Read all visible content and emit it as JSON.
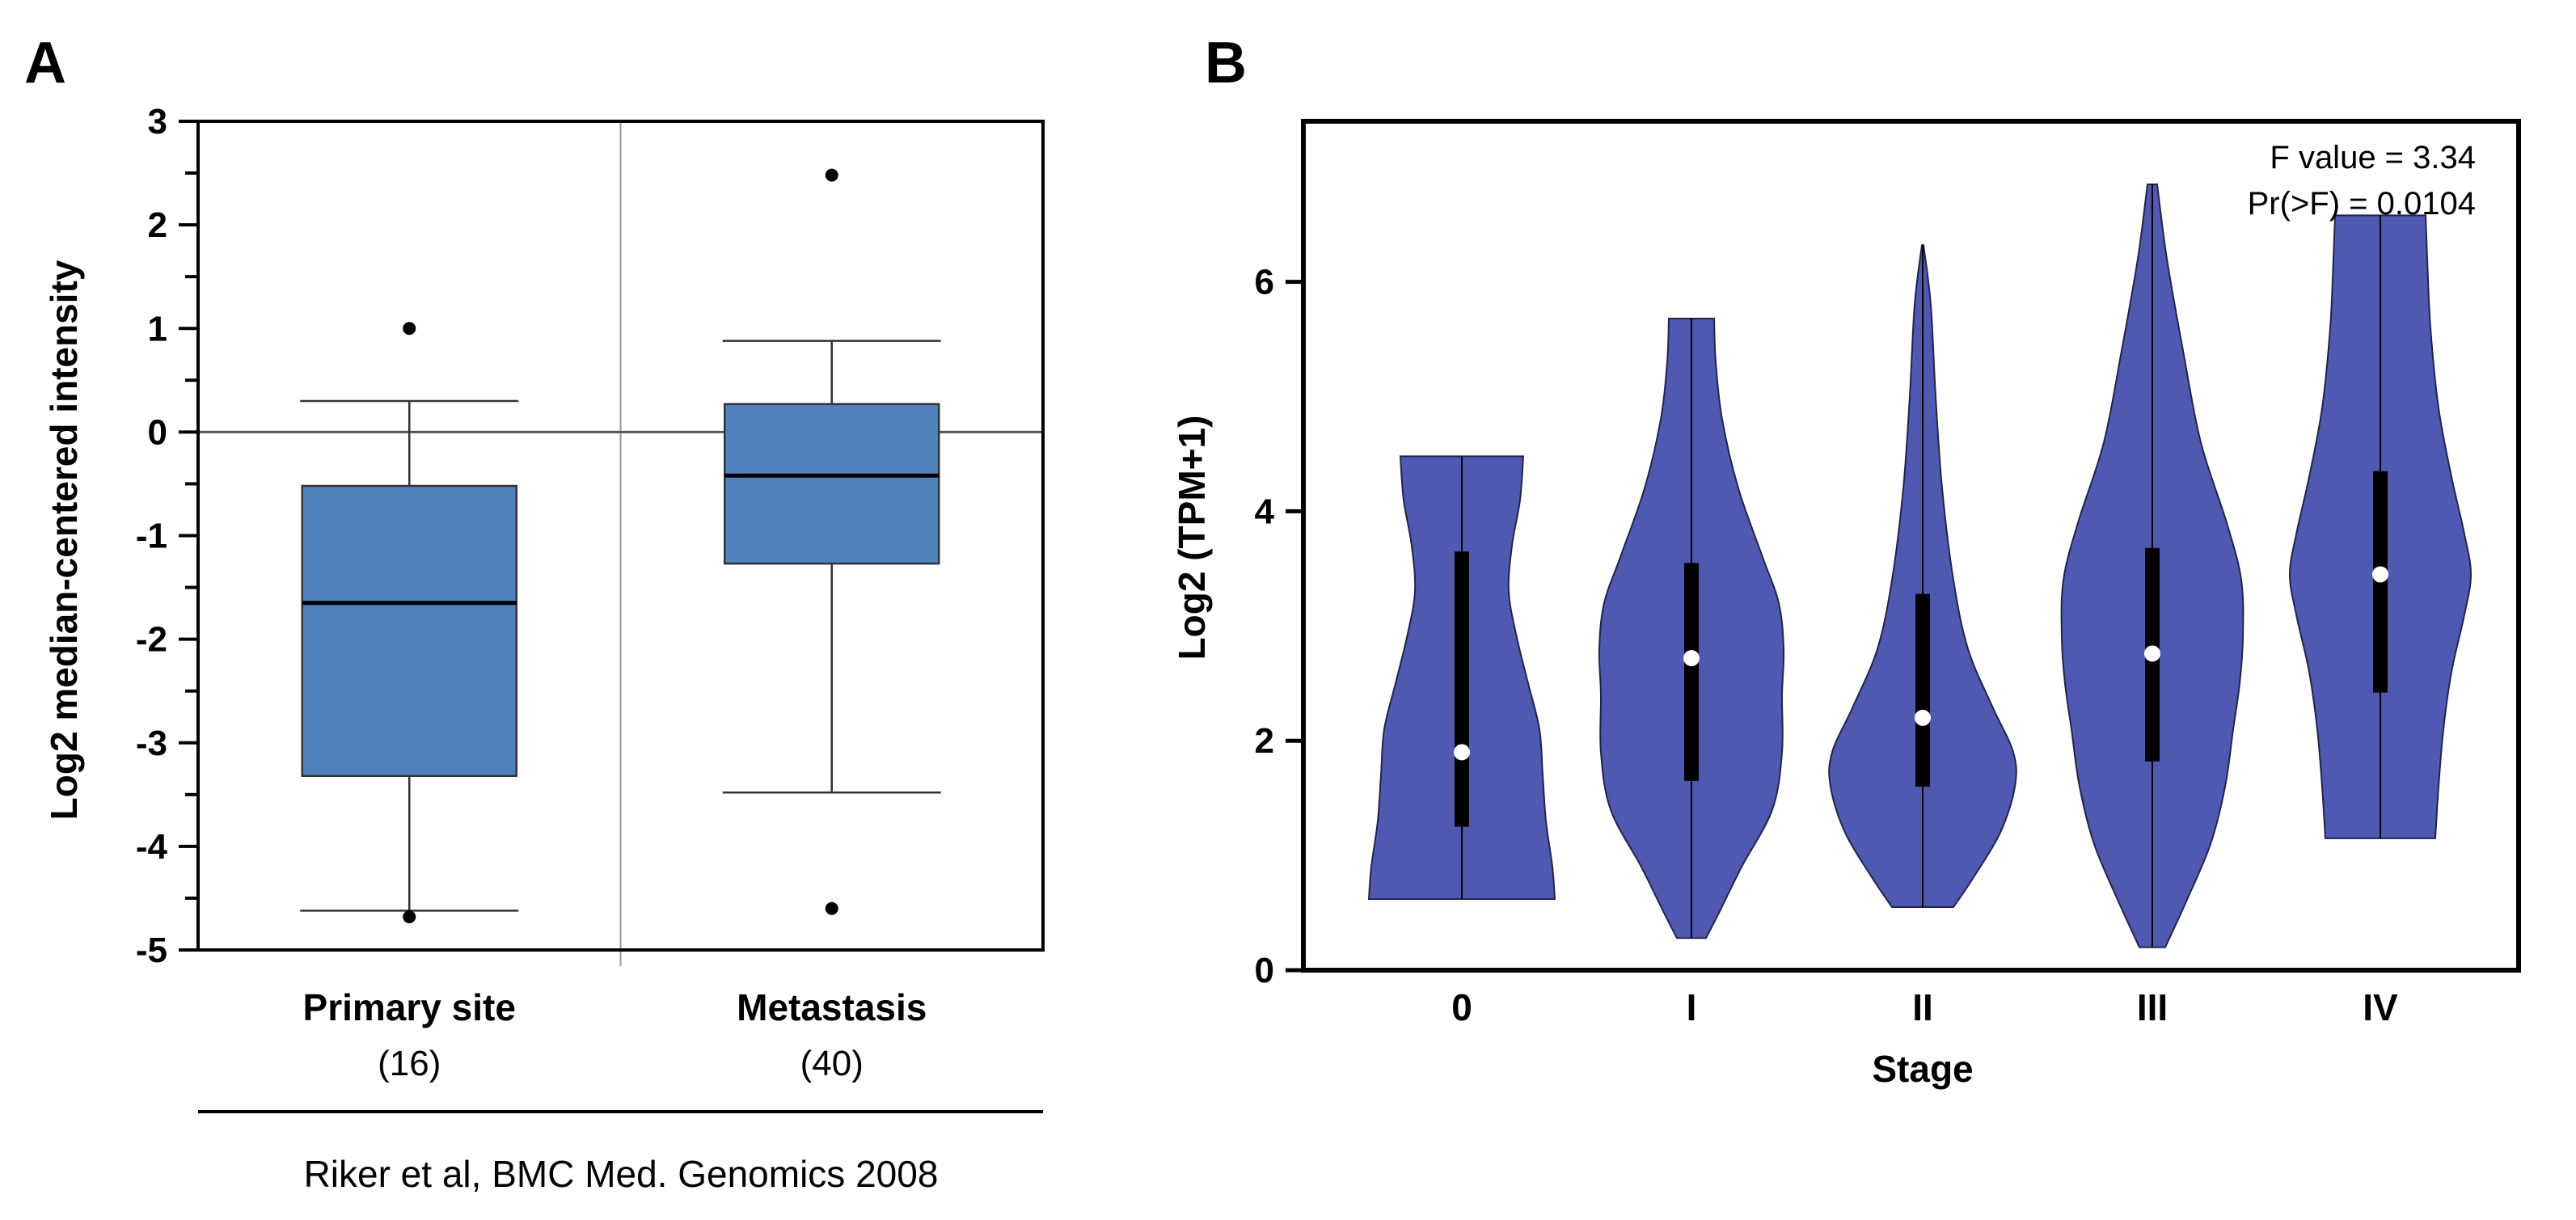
{
  "panels": {
    "a": {
      "label": "A"
    },
    "b": {
      "label": "B"
    }
  },
  "chart_data": [
    {
      "type": "box",
      "ylabel": "Log2 median-centered intensity",
      "ylim": [
        -5,
        3
      ],
      "yticks": [
        "3",
        "2",
        "1",
        "0",
        "-1",
        "-2",
        "-3",
        "-4",
        "-5"
      ],
      "reference_line": 0,
      "color": "#4f81bd",
      "categories": [
        {
          "name": "Primary site",
          "count_label": "(16)",
          "whisker_low": -4.62,
          "q1": -3.32,
          "median": -1.65,
          "q3": -0.52,
          "whisker_high": 0.3,
          "outliers": [
            1.0,
            -4.68
          ]
        },
        {
          "name": "Metastasis",
          "count_label": "(40)",
          "whisker_low": -3.48,
          "q1": -1.27,
          "median": -0.42,
          "q3": 0.27,
          "whisker_high": 0.88,
          "outliers": [
            2.48,
            -4.6
          ]
        }
      ],
      "caption": "Riker et al, BMC Med. Genomics 2008"
    },
    {
      "type": "violin",
      "xlabel": "Stage",
      "ylabel": "Log2 (TPM+1)",
      "ylim": [
        0,
        7.4
      ],
      "yticks": [
        "0",
        "2",
        "4",
        "6"
      ],
      "color": "#4f59b2",
      "annotations": [
        "F value = 3.34",
        "Pr(>F) = 0.0104"
      ],
      "categories": [
        {
          "name": "0",
          "min": 0.62,
          "max": 4.48,
          "q1": 1.25,
          "median": 1.9,
          "q3": 3.65,
          "zero_line": true
        },
        {
          "name": "I",
          "min": 0.28,
          "max": 5.68,
          "q1": 1.65,
          "median": 2.72,
          "q3": 3.55,
          "zero_line": true
        },
        {
          "name": "II",
          "min": 0.55,
          "max": 6.32,
          "q1": 1.6,
          "median": 2.2,
          "q3": 3.28,
          "zero_line": false
        },
        {
          "name": "III",
          "min": 0.2,
          "max": 6.85,
          "q1": 1.82,
          "median": 2.76,
          "q3": 3.68,
          "zero_line": false
        },
        {
          "name": "IV",
          "min": 1.15,
          "max": 6.58,
          "q1": 2.42,
          "median": 3.45,
          "q3": 4.35,
          "zero_line": false
        }
      ]
    }
  ]
}
